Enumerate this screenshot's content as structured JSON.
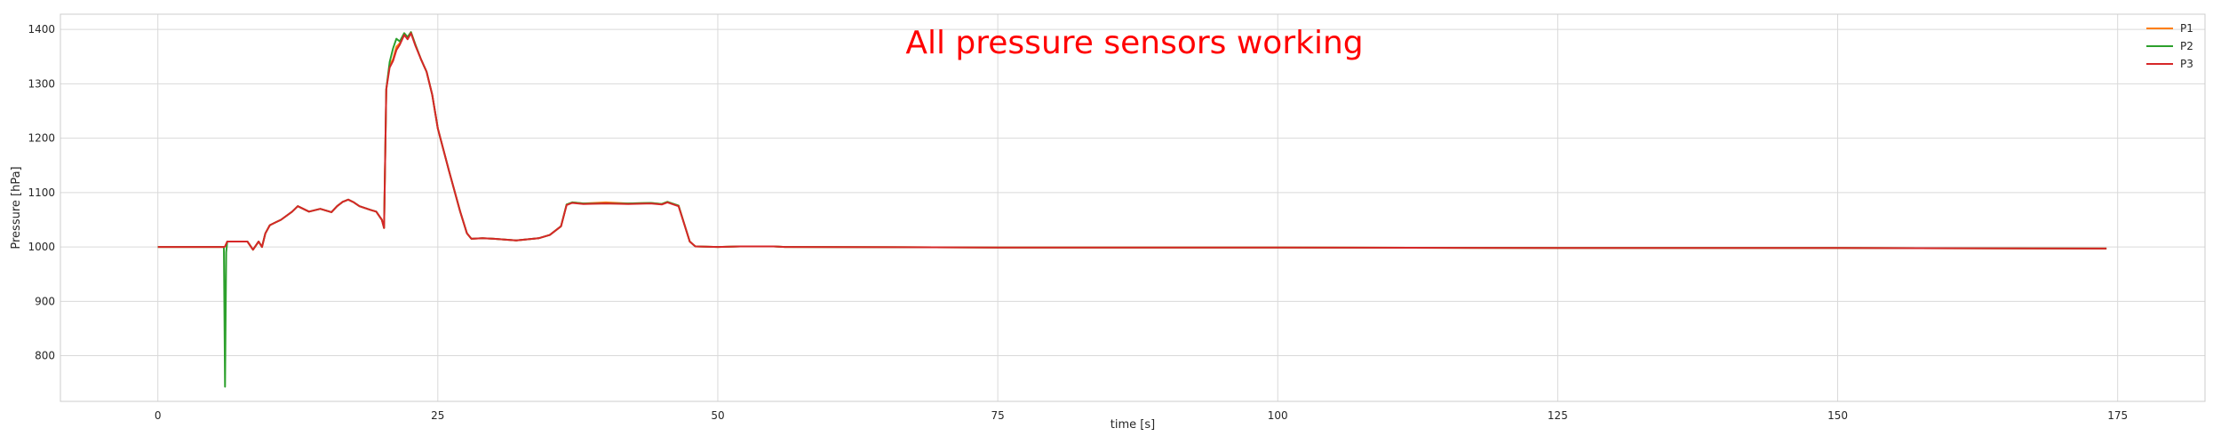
{
  "chart_data": {
    "type": "line",
    "title": "",
    "xlabel": "time [s]",
    "ylabel": "Pressure [hPa]",
    "xlim": [
      -8.7,
      182.8
    ],
    "ylim": [
      716,
      1428
    ],
    "xticks": [
      0,
      25,
      50,
      75,
      100,
      125,
      150,
      175
    ],
    "yticks": [
      800,
      900,
      1000,
      1100,
      1200,
      1300,
      1400
    ],
    "grid": true,
    "legend_position": "top-right",
    "annotation": {
      "text": "All pressure sensors working",
      "color": "#ff0000"
    },
    "series": [
      {
        "name": "P1",
        "color": "#ff7f0e",
        "points": [
          [
            0,
            1000
          ],
          [
            5.9,
            1000
          ],
          [
            6.0,
            1001
          ],
          [
            6.2,
            1010
          ],
          [
            8.0,
            1010
          ],
          [
            8.5,
            995
          ],
          [
            9.0,
            1010
          ],
          [
            9.3,
            1000
          ],
          [
            9.6,
            1025
          ],
          [
            10.0,
            1040
          ],
          [
            10.5,
            1045
          ],
          [
            11.0,
            1050
          ],
          [
            12.0,
            1065
          ],
          [
            12.5,
            1075
          ],
          [
            13.5,
            1065
          ],
          [
            14.5,
            1070
          ],
          [
            15.5,
            1064
          ],
          [
            16.0,
            1075
          ],
          [
            16.5,
            1083
          ],
          [
            17.0,
            1087
          ],
          [
            17.5,
            1082
          ],
          [
            18.0,
            1075
          ],
          [
            19.0,
            1068
          ],
          [
            19.5,
            1065
          ],
          [
            20.0,
            1050
          ],
          [
            20.2,
            1035
          ],
          [
            20.4,
            1290
          ],
          [
            20.7,
            1335
          ],
          [
            21.0,
            1345
          ],
          [
            21.3,
            1368
          ],
          [
            21.6,
            1375
          ],
          [
            22.0,
            1393
          ],
          [
            22.3,
            1385
          ],
          [
            22.6,
            1395
          ],
          [
            23.0,
            1372
          ],
          [
            23.5,
            1345
          ],
          [
            24.0,
            1322
          ],
          [
            24.5,
            1280
          ],
          [
            25.0,
            1218
          ],
          [
            26.0,
            1140
          ],
          [
            27.0,
            1065
          ],
          [
            27.6,
            1025
          ],
          [
            28.0,
            1015
          ],
          [
            29.0,
            1016
          ],
          [
            30.0,
            1015
          ],
          [
            32.0,
            1012
          ],
          [
            34.0,
            1016
          ],
          [
            35.0,
            1022
          ],
          [
            36.0,
            1038
          ],
          [
            36.5,
            1078
          ],
          [
            37.0,
            1082
          ],
          [
            38.0,
            1080
          ],
          [
            40.0,
            1082
          ],
          [
            42.0,
            1080
          ],
          [
            44.0,
            1081
          ],
          [
            45.0,
            1079
          ],
          [
            45.5,
            1083
          ],
          [
            46.5,
            1076
          ],
          [
            47.5,
            1010
          ],
          [
            48.0,
            1001
          ],
          [
            50.0,
            1000
          ],
          [
            52.0,
            1001
          ],
          [
            55.0,
            1001
          ],
          [
            56.0,
            1000
          ],
          [
            75.0,
            999
          ],
          [
            100.0,
            999
          ],
          [
            125.0,
            998
          ],
          [
            150.0,
            998
          ],
          [
            174.0,
            997
          ]
        ]
      },
      {
        "name": "P2",
        "color": "#2ca02c",
        "points": [
          [
            0,
            1000
          ],
          [
            5.9,
            1000
          ],
          [
            6.0,
            743
          ],
          [
            6.1,
            990
          ],
          [
            6.2,
            1010
          ],
          [
            8.0,
            1010
          ],
          [
            8.5,
            995
          ],
          [
            9.0,
            1010
          ],
          [
            9.3,
            1000
          ],
          [
            9.6,
            1025
          ],
          [
            10.0,
            1040
          ],
          [
            10.5,
            1045
          ],
          [
            11.0,
            1050
          ],
          [
            12.0,
            1065
          ],
          [
            12.5,
            1075
          ],
          [
            13.5,
            1065
          ],
          [
            14.5,
            1070
          ],
          [
            15.5,
            1064
          ],
          [
            16.0,
            1075
          ],
          [
            16.5,
            1083
          ],
          [
            17.0,
            1087
          ],
          [
            17.5,
            1082
          ],
          [
            18.0,
            1075
          ],
          [
            19.0,
            1068
          ],
          [
            19.5,
            1065
          ],
          [
            20.0,
            1050
          ],
          [
            20.2,
            1035
          ],
          [
            20.4,
            1290
          ],
          [
            20.7,
            1340
          ],
          [
            21.0,
            1365
          ],
          [
            21.3,
            1383
          ],
          [
            21.6,
            1378
          ],
          [
            22.0,
            1393
          ],
          [
            22.3,
            1386
          ],
          [
            22.6,
            1395
          ],
          [
            23.0,
            1372
          ],
          [
            23.5,
            1345
          ],
          [
            24.0,
            1322
          ],
          [
            24.5,
            1280
          ],
          [
            25.0,
            1218
          ],
          [
            26.0,
            1140
          ],
          [
            27.0,
            1065
          ],
          [
            27.6,
            1025
          ],
          [
            28.0,
            1015
          ],
          [
            29.0,
            1016
          ],
          [
            30.0,
            1015
          ],
          [
            32.0,
            1012
          ],
          [
            34.0,
            1016
          ],
          [
            35.0,
            1022
          ],
          [
            36.0,
            1038
          ],
          [
            36.5,
            1078
          ],
          [
            37.0,
            1082
          ],
          [
            38.0,
            1080
          ],
          [
            40.0,
            1080
          ],
          [
            42.0,
            1080
          ],
          [
            44.0,
            1081
          ],
          [
            45.0,
            1079
          ],
          [
            45.5,
            1083
          ],
          [
            46.5,
            1076
          ],
          [
            47.5,
            1010
          ],
          [
            48.0,
            1001
          ],
          [
            50.0,
            1000
          ],
          [
            52.0,
            1001
          ],
          [
            55.0,
            1001
          ],
          [
            56.0,
            1000
          ],
          [
            75.0,
            999
          ],
          [
            100.0,
            999
          ],
          [
            125.0,
            998
          ],
          [
            150.0,
            998
          ],
          [
            174.0,
            997
          ]
        ]
      },
      {
        "name": "P3",
        "color": "#d62728",
        "points": [
          [
            0,
            1000
          ],
          [
            5.9,
            1000
          ],
          [
            6.0,
            1001
          ],
          [
            6.2,
            1010
          ],
          [
            8.0,
            1010
          ],
          [
            8.5,
            995
          ],
          [
            9.0,
            1010
          ],
          [
            9.3,
            1000
          ],
          [
            9.6,
            1025
          ],
          [
            10.0,
            1040
          ],
          [
            10.5,
            1045
          ],
          [
            11.0,
            1050
          ],
          [
            12.0,
            1065
          ],
          [
            12.5,
            1075
          ],
          [
            13.5,
            1065
          ],
          [
            14.5,
            1070
          ],
          [
            15.5,
            1064
          ],
          [
            16.0,
            1075
          ],
          [
            16.5,
            1083
          ],
          [
            17.0,
            1087
          ],
          [
            17.5,
            1082
          ],
          [
            18.0,
            1075
          ],
          [
            19.0,
            1068
          ],
          [
            19.5,
            1065
          ],
          [
            20.0,
            1050
          ],
          [
            20.2,
            1035
          ],
          [
            20.4,
            1290
          ],
          [
            20.7,
            1330
          ],
          [
            21.0,
            1342
          ],
          [
            21.3,
            1362
          ],
          [
            21.6,
            1372
          ],
          [
            22.0,
            1390
          ],
          [
            22.3,
            1382
          ],
          [
            22.6,
            1393
          ],
          [
            23.0,
            1370
          ],
          [
            23.5,
            1345
          ],
          [
            24.0,
            1322
          ],
          [
            24.5,
            1280
          ],
          [
            25.0,
            1218
          ],
          [
            26.0,
            1140
          ],
          [
            27.0,
            1065
          ],
          [
            27.6,
            1025
          ],
          [
            28.0,
            1015
          ],
          [
            29.0,
            1016
          ],
          [
            30.0,
            1015
          ],
          [
            32.0,
            1012
          ],
          [
            34.0,
            1016
          ],
          [
            35.0,
            1022
          ],
          [
            36.0,
            1038
          ],
          [
            36.5,
            1077
          ],
          [
            37.0,
            1081
          ],
          [
            38.0,
            1079
          ],
          [
            40.0,
            1080
          ],
          [
            42.0,
            1079
          ],
          [
            44.0,
            1080
          ],
          [
            45.0,
            1078
          ],
          [
            45.5,
            1082
          ],
          [
            46.5,
            1075
          ],
          [
            47.5,
            1010
          ],
          [
            48.0,
            1001
          ],
          [
            50.0,
            1000
          ],
          [
            52.0,
            1001
          ],
          [
            55.0,
            1001
          ],
          [
            56.0,
            1000
          ],
          [
            75.0,
            999
          ],
          [
            100.0,
            999
          ],
          [
            125.0,
            998
          ],
          [
            150.0,
            998
          ],
          [
            174.0,
            997
          ]
        ]
      }
    ]
  }
}
